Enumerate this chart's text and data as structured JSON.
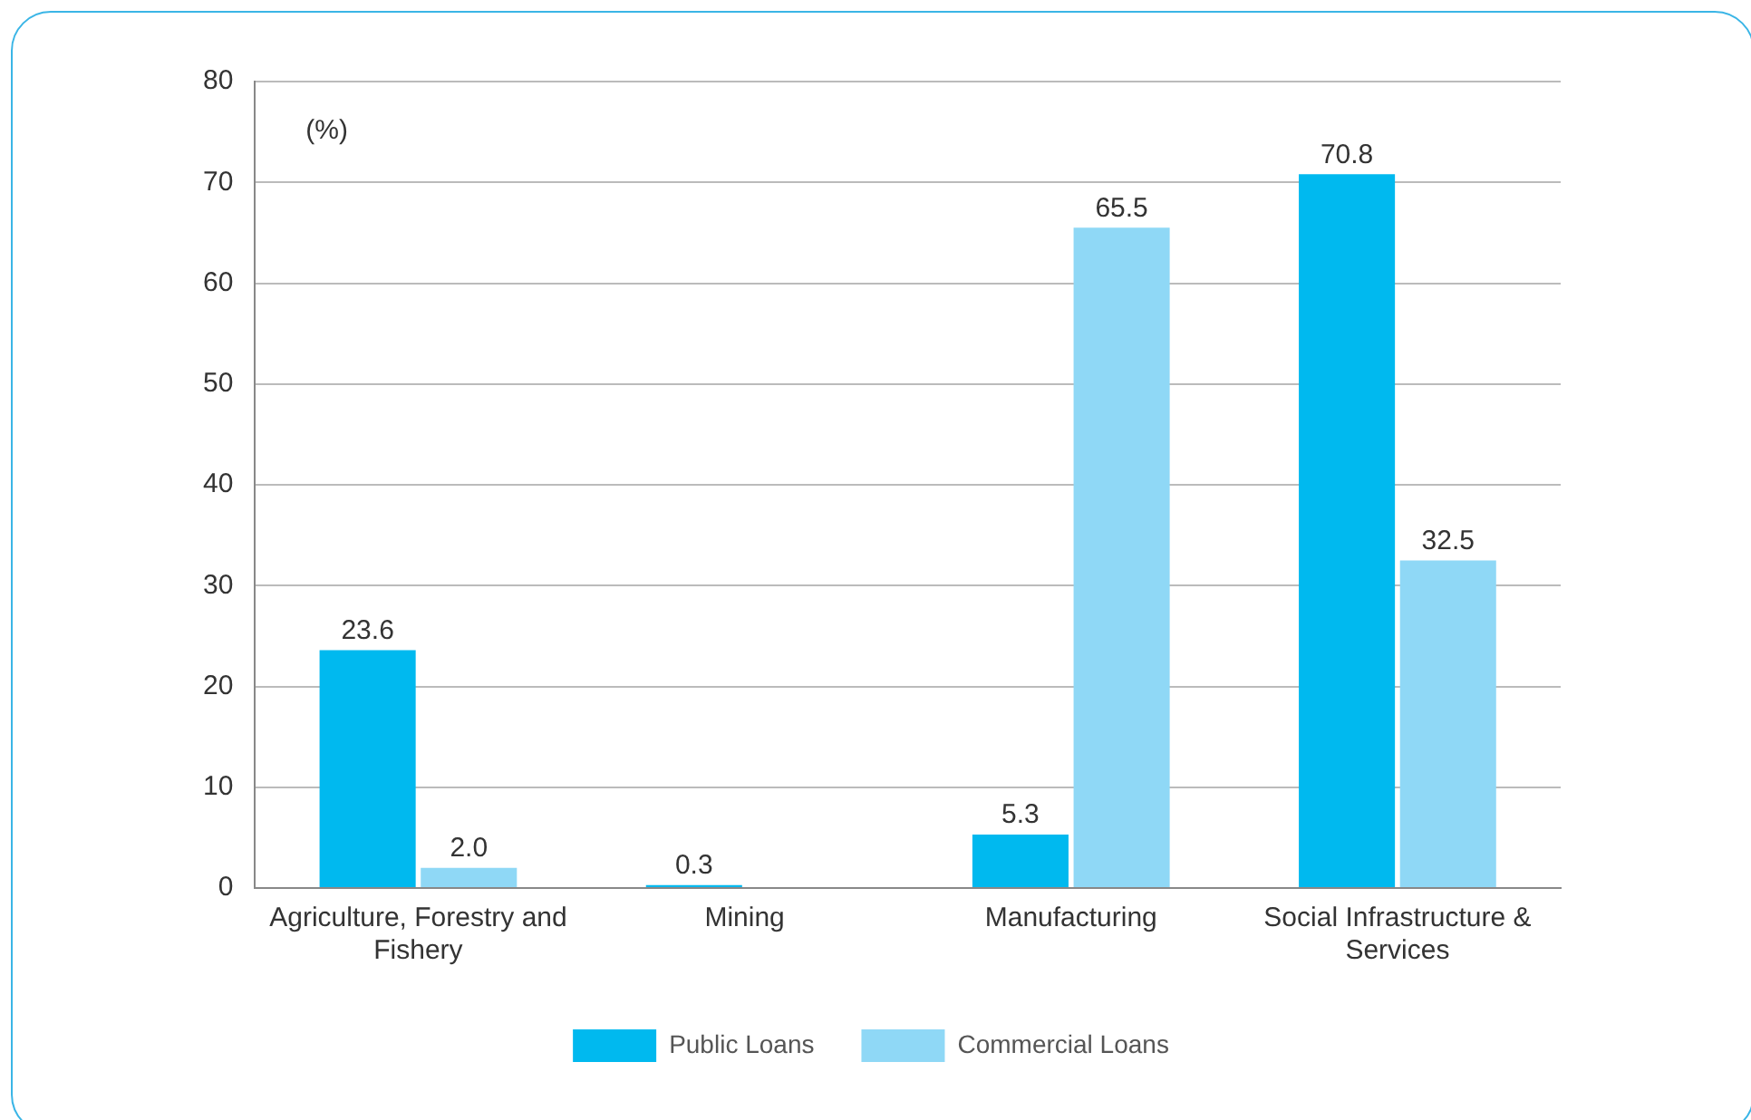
{
  "chart_data": {
    "type": "bar",
    "ylabel": "(%)",
    "categories": [
      "Agriculture, Forestry and Fishery",
      "Mining",
      "Manufacturing",
      "Social Infrastructure & Services"
    ],
    "series": [
      {
        "name": "Public Loans",
        "color": "#00b9ef",
        "values": [
          23.6,
          0.3,
          5.3,
          70.8
        ],
        "value_labels": [
          "23.6",
          "0.3",
          "5.3",
          "70.8"
        ]
      },
      {
        "name": "Commercial Loans",
        "color": "#8fd8f6",
        "values": [
          2.0,
          null,
          65.5,
          32.5
        ],
        "value_labels": [
          "2.0",
          null,
          "65.5",
          "32.5"
        ]
      }
    ],
    "ylim": [
      0,
      80
    ],
    "yticks": [
      0,
      10,
      20,
      30,
      40,
      50,
      60,
      70,
      80
    ],
    "grid": "y",
    "legend": "bottom"
  }
}
